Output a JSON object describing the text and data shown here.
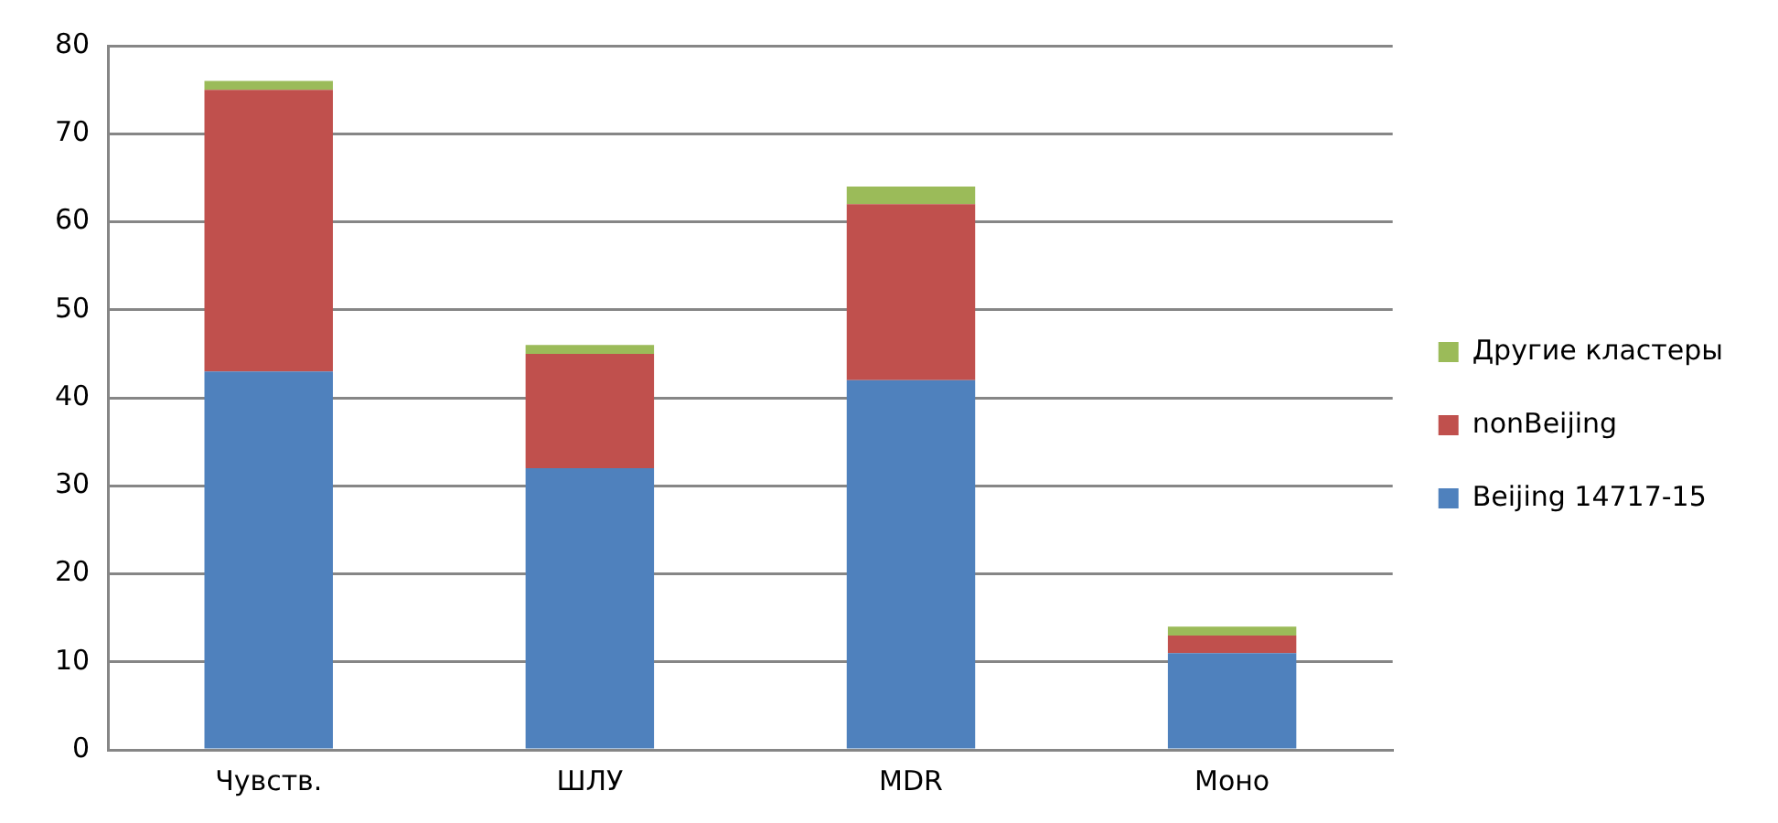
{
  "chart_data": {
    "type": "bar",
    "stacked": true,
    "categories": [
      "Чувств.",
      "ШЛУ",
      "MDR",
      "Моно"
    ],
    "series": [
      {
        "name": "Beijing 14717-15",
        "color": "#4f81bd",
        "values": [
          43,
          32,
          42,
          11
        ]
      },
      {
        "name": "nonBeijing",
        "color": "#c0504d",
        "values": [
          32,
          13,
          20,
          2
        ]
      },
      {
        "name": "Другие кластеры",
        "color": "#9bbb59",
        "values": [
          1,
          1,
          2,
          1
        ]
      }
    ],
    "ylim": [
      0,
      80
    ],
    "yticks": [
      0,
      10,
      20,
      30,
      40,
      50,
      60,
      70,
      80
    ],
    "grid": "y",
    "legend": "right"
  }
}
